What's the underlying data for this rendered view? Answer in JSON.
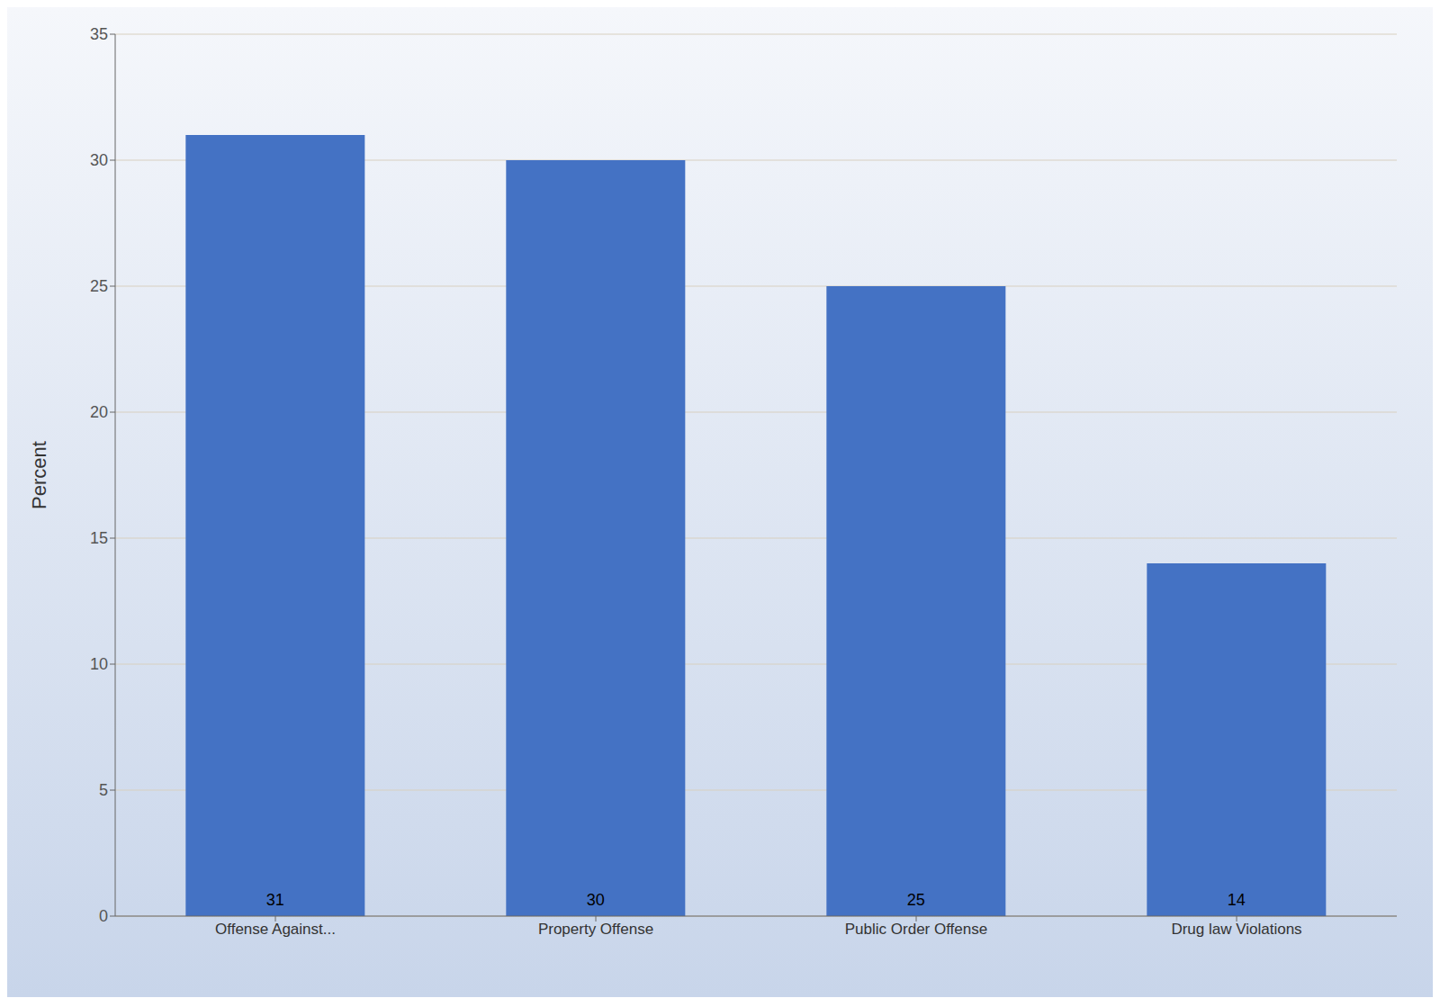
{
  "chart_data": {
    "type": "bar",
    "categories": [
      "Offense Against...",
      "Property Offense",
      "Public Order Offense",
      "Drug law Violations"
    ],
    "values": [
      31,
      30,
      25,
      14
    ],
    "color": "#4472C4",
    "ylabel": "Percent",
    "ylim": [
      0,
      35
    ],
    "yticks": [
      0,
      5,
      10,
      15,
      20,
      25,
      30,
      35
    ],
    "grid": true,
    "data_labels": true
  }
}
